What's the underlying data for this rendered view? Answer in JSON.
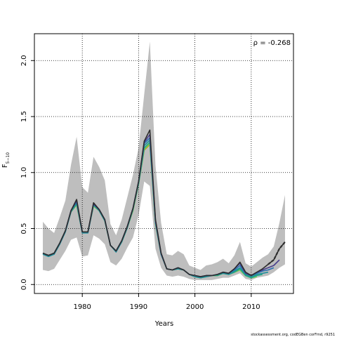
{
  "chart_data": {
    "type": "line",
    "xlabel": "Years",
    "ylabel_main": "F",
    "ylabel_sub": "5−10",
    "annotation": "ρ = -0.268",
    "footer": "stockassessment.org, codEGBen corFmd, r9251",
    "xlim": [
      1971.5,
      2017.5
    ],
    "ylim": [
      -0.08,
      2.24
    ],
    "xticks": [
      1980,
      1990,
      2000,
      2010
    ],
    "yticks": [
      0.0,
      0.5,
      1.0,
      1.5,
      2.0
    ],
    "ytick_labels": [
      "0.0",
      "0.5",
      "1.0",
      "1.5",
      "2.0"
    ],
    "grid": true,
    "colors": {
      "band": "#bebebe",
      "grid": "#000000",
      "main": "#2d2d2d"
    },
    "years": [
      1973,
      1974,
      1975,
      1976,
      1977,
      1978,
      1979,
      1980,
      1981,
      1982,
      1983,
      1984,
      1985,
      1986,
      1987,
      1988,
      1989,
      1990,
      1991,
      1992,
      1993,
      1994,
      1995,
      1996,
      1997,
      1998,
      1999,
      2000,
      2001,
      2002,
      2003,
      2004,
      2005,
      2006,
      2007,
      2008,
      2009,
      2010,
      2011,
      2012,
      2013,
      2014,
      2015,
      2016
    ],
    "band": {
      "lower": [
        0.13,
        0.12,
        0.14,
        0.22,
        0.3,
        0.4,
        0.42,
        0.25,
        0.26,
        0.44,
        0.41,
        0.36,
        0.2,
        0.17,
        0.23,
        0.33,
        0.42,
        0.62,
        0.92,
        0.88,
        0.32,
        0.15,
        0.08,
        0.07,
        0.08,
        0.07,
        0.05,
        0.04,
        0.04,
        0.04,
        0.04,
        0.05,
        0.06,
        0.06,
        0.08,
        0.1,
        0.05,
        0.04,
        0.06,
        0.07,
        0.08,
        0.11,
        0.15,
        0.18
      ],
      "upper": [
        0.56,
        0.5,
        0.46,
        0.6,
        0.75,
        1.07,
        1.32,
        0.87,
        0.82,
        1.14,
        1.05,
        0.93,
        0.54,
        0.44,
        0.58,
        0.78,
        0.98,
        1.22,
        1.7,
        2.17,
        1.06,
        0.55,
        0.27,
        0.26,
        0.3,
        0.27,
        0.17,
        0.15,
        0.13,
        0.17,
        0.18,
        0.2,
        0.23,
        0.19,
        0.26,
        0.38,
        0.19,
        0.16,
        0.2,
        0.24,
        0.27,
        0.34,
        0.55,
        0.8
      ]
    },
    "series": [
      {
        "color": "#2d2d2d",
        "style": "solid",
        "x": [
          1973,
          1974,
          1975,
          1976,
          1977,
          1978,
          1979,
          1980,
          1981,
          1982,
          1983,
          1984,
          1985,
          1986,
          1987,
          1988,
          1989,
          1990,
          1991,
          1992,
          1993,
          1994,
          1995,
          1996,
          1997,
          1998,
          1999,
          2000,
          2001,
          2002,
          2003,
          2004,
          2005,
          2006,
          2007,
          2008,
          2009,
          2010,
          2011,
          2012,
          2013,
          2014,
          2015,
          2016
        ],
        "y": [
          0.28,
          0.26,
          0.28,
          0.37,
          0.48,
          0.66,
          0.76,
          0.47,
          0.47,
          0.73,
          0.67,
          0.58,
          0.35,
          0.3,
          0.39,
          0.52,
          0.68,
          0.92,
          1.28,
          1.38,
          0.58,
          0.28,
          0.14,
          0.13,
          0.15,
          0.13,
          0.09,
          0.08,
          0.07,
          0.08,
          0.08,
          0.09,
          0.11,
          0.1,
          0.14,
          0.2,
          0.11,
          0.08,
          0.11,
          0.14,
          0.18,
          0.22,
          0.32,
          0.38
        ]
      },
      {
        "color": "#2d2d2d",
        "style": "dashed",
        "x": [
          2013,
          2014,
          2015,
          2016
        ],
        "y": [
          0.18,
          0.22,
          0.32,
          0.38
        ]
      },
      {
        "color": "#483d8b",
        "style": "solid",
        "x": [
          1973,
          1974,
          1975,
          1976,
          1977,
          1978,
          1979,
          1980,
          1981,
          1982,
          1983,
          1984,
          1985,
          1986,
          1987,
          1988,
          1989,
          1990,
          1991,
          1992,
          1993,
          1994,
          1995,
          1996,
          1997,
          1998,
          1999,
          2000,
          2001,
          2002,
          2003,
          2004,
          2005,
          2006,
          2007,
          2008,
          2009,
          2010,
          2011,
          2012,
          2013,
          2014,
          2015
        ],
        "y": [
          0.28,
          0.26,
          0.28,
          0.37,
          0.48,
          0.66,
          0.75,
          0.47,
          0.47,
          0.72,
          0.67,
          0.58,
          0.35,
          0.3,
          0.39,
          0.52,
          0.68,
          0.92,
          1.27,
          1.34,
          0.57,
          0.28,
          0.14,
          0.13,
          0.15,
          0.13,
          0.09,
          0.08,
          0.07,
          0.08,
          0.08,
          0.09,
          0.11,
          0.1,
          0.14,
          0.19,
          0.1,
          0.08,
          0.11,
          0.13,
          0.15,
          0.17,
          0.22
        ]
      },
      {
        "color": "#2a6fb0",
        "style": "solid",
        "x": [
          1973,
          1974,
          1975,
          1976,
          1977,
          1978,
          1979,
          1980,
          1981,
          1982,
          1983,
          1984,
          1985,
          1986,
          1987,
          1988,
          1989,
          1990,
          1991,
          1992,
          1993,
          1994,
          1995,
          1996,
          1997,
          1998,
          1999,
          2000,
          2001,
          2002,
          2003,
          2004,
          2005,
          2006,
          2007,
          2008,
          2009,
          2010,
          2011,
          2012,
          2013,
          2014
        ],
        "y": [
          0.28,
          0.26,
          0.28,
          0.37,
          0.48,
          0.66,
          0.74,
          0.47,
          0.47,
          0.72,
          0.67,
          0.58,
          0.35,
          0.3,
          0.39,
          0.52,
          0.68,
          0.92,
          1.26,
          1.31,
          0.56,
          0.27,
          0.14,
          0.13,
          0.15,
          0.13,
          0.09,
          0.08,
          0.07,
          0.08,
          0.08,
          0.09,
          0.11,
          0.1,
          0.13,
          0.17,
          0.1,
          0.08,
          0.1,
          0.12,
          0.13,
          0.15
        ]
      },
      {
        "color": "#1f8f9a",
        "style": "solid",
        "x": [
          1973,
          1974,
          1975,
          1976,
          1977,
          1978,
          1979,
          1980,
          1981,
          1982,
          1983,
          1984,
          1985,
          1986,
          1987,
          1988,
          1989,
          1990,
          1991,
          1992,
          1993,
          1994,
          1995,
          1996,
          1997,
          1998,
          1999,
          2000,
          2001,
          2002,
          2003,
          2004,
          2005,
          2006,
          2007,
          2008,
          2009,
          2010,
          2011,
          2012,
          2013
        ],
        "y": [
          0.27,
          0.25,
          0.27,
          0.36,
          0.47,
          0.65,
          0.73,
          0.46,
          0.46,
          0.71,
          0.66,
          0.57,
          0.35,
          0.29,
          0.38,
          0.51,
          0.67,
          0.91,
          1.24,
          1.29,
          0.55,
          0.27,
          0.14,
          0.13,
          0.14,
          0.13,
          0.09,
          0.07,
          0.06,
          0.07,
          0.08,
          0.09,
          0.1,
          0.09,
          0.12,
          0.15,
          0.09,
          0.07,
          0.09,
          0.1,
          0.11
        ]
      },
      {
        "color": "#22a884",
        "style": "solid",
        "x": [
          1973,
          1974,
          1975,
          1976,
          1977,
          1978,
          1979,
          1980,
          1981,
          1982,
          1983,
          1984,
          1985,
          1986,
          1987,
          1988,
          1989,
          1990,
          1991,
          1992,
          1993,
          1994,
          1995,
          1996,
          1997,
          1998,
          1999,
          2000,
          2001,
          2002,
          2003,
          2004,
          2005,
          2006,
          2007,
          2008,
          2009,
          2010,
          2011,
          2012
        ],
        "y": [
          0.28,
          0.26,
          0.28,
          0.37,
          0.48,
          0.65,
          0.72,
          0.47,
          0.47,
          0.71,
          0.66,
          0.57,
          0.35,
          0.3,
          0.38,
          0.51,
          0.67,
          0.9,
          1.22,
          1.27,
          0.55,
          0.27,
          0.14,
          0.13,
          0.14,
          0.13,
          0.09,
          0.07,
          0.06,
          0.07,
          0.08,
          0.08,
          0.1,
          0.09,
          0.11,
          0.14,
          0.08,
          0.06,
          0.08,
          0.09
        ]
      },
      {
        "color": "#7ad151",
        "style": "solid",
        "x": [
          1973,
          1974,
          1975,
          1976,
          1977,
          1978,
          1979,
          1980,
          1981,
          1982,
          1983,
          1984,
          1985,
          1986,
          1987,
          1988,
          1989,
          1990,
          1991,
          1992,
          1993,
          1994,
          1995,
          1996,
          1997,
          1998,
          1999,
          2000,
          2001,
          2002,
          2003,
          2004,
          2005,
          2006,
          2007,
          2008,
          2009,
          2010,
          2011
        ],
        "y": [
          0.28,
          0.26,
          0.28,
          0.37,
          0.48,
          0.65,
          0.71,
          0.47,
          0.47,
          0.7,
          0.66,
          0.57,
          0.35,
          0.3,
          0.38,
          0.51,
          0.66,
          0.9,
          1.21,
          1.26,
          0.54,
          0.27,
          0.14,
          0.13,
          0.14,
          0.13,
          0.09,
          0.07,
          0.06,
          0.07,
          0.08,
          0.08,
          0.1,
          0.09,
          0.11,
          0.13,
          0.08,
          0.06,
          0.07
        ]
      },
      {
        "color": "#b5a21b",
        "style": "solid",
        "x": [
          1973,
          1974,
          1975,
          1976,
          1977,
          1978,
          1979,
          1980,
          1981,
          1982,
          1983,
          1984,
          1985,
          1986,
          1987,
          1988,
          1989,
          1990,
          1991,
          1992,
          1993,
          1994,
          1995,
          1996,
          1997,
          1998,
          1999,
          2000,
          2001,
          2002,
          2003,
          2004,
          2005,
          2006,
          2007,
          2008,
          2009,
          2010
        ],
        "y": [
          0.28,
          0.26,
          0.28,
          0.37,
          0.48,
          0.65,
          0.71,
          0.47,
          0.47,
          0.7,
          0.66,
          0.57,
          0.35,
          0.3,
          0.38,
          0.51,
          0.66,
          0.9,
          1.2,
          1.25,
          0.54,
          0.27,
          0.14,
          0.13,
          0.14,
          0.13,
          0.09,
          0.07,
          0.06,
          0.07,
          0.08,
          0.08,
          0.1,
          0.09,
          0.11,
          0.13,
          0.08,
          0.06
        ]
      }
    ]
  }
}
